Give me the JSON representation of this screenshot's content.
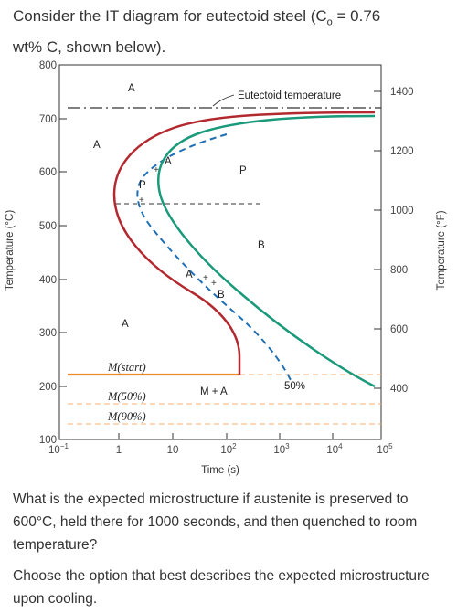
{
  "question": {
    "line1": "Consider the IT diagram for eutectoid steel (C",
    "c_sub": "o",
    "line1_end": " = 0.76",
    "line2": "wt% C, shown below)."
  },
  "diagram": {
    "y_left_ticks": [
      "800",
      "700",
      "600",
      "500",
      "400",
      "300",
      "200",
      "100"
    ],
    "y_right_ticks": [
      "1400",
      "1200",
      "1000",
      "800",
      "600",
      "400"
    ],
    "x_ticks": [
      {
        "base": "10",
        "exp": "−1"
      },
      {
        "base": "1",
        "exp": ""
      },
      {
        "base": "10",
        "exp": ""
      },
      {
        "base": "10",
        "exp": "2"
      },
      {
        "base": "10",
        "exp": "3"
      },
      {
        "base": "10",
        "exp": "4"
      },
      {
        "base": "10",
        "exp": "5"
      }
    ],
    "x_label": "Time (s)",
    "y_left_label": "Temperature (°C)",
    "y_right_label": "Temperature (°F)",
    "eutectoid_label": "Eutectoid temperature",
    "region_labels": {
      "a_top": "A",
      "a_left": "A",
      "a_mid_curve": "A",
      "p_upper": "P",
      "p_mid": "P",
      "b": "B",
      "a_lower_curve": "A",
      "b_lower": "B",
      "a_low": "A",
      "m_start": "M(start)",
      "m_50": "M(50%)",
      "m_90": "M(90%)",
      "m_plus_a": "M + A",
      "fifty": "50%"
    }
  },
  "prompt": {
    "question": "What is the expected microstructure if austenite is preserved to 600°C, held there for 1000 seconds, and then quenched to room temperature?",
    "instruction": "Choose the option that best describes the expected microstructure upon cooling."
  },
  "colors": {
    "start_curve": "#b22a30",
    "finish_curve": "#1a9a7a",
    "fifty_curve": "#1f6fb5",
    "martensite_line": "#f08a28",
    "martensite_dashed": "#f5b070"
  }
}
